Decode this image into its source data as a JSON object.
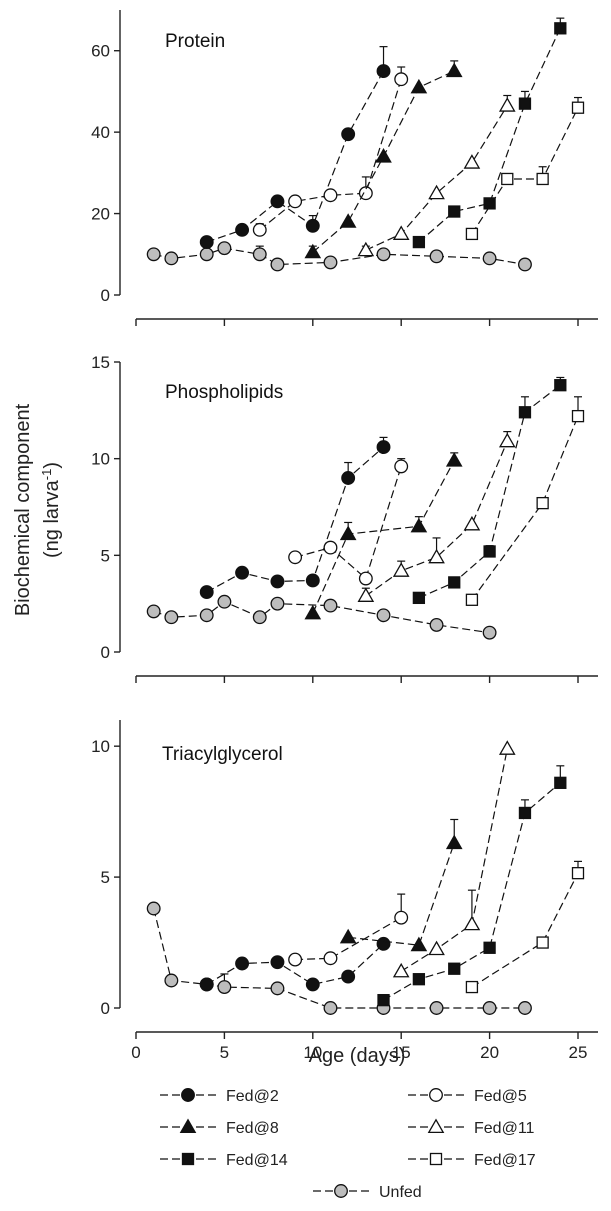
{
  "figure": {
    "ylabel_line1": "Biochemical component",
    "ylabel_line2_pre": "(ng larva",
    "ylabel_line2_sup": "-1",
    "ylabel_line2_post": ")",
    "xlabel": "Age (days)"
  },
  "series_styles": {
    "Fed@2": {
      "marker": "circle",
      "fill": "#111111"
    },
    "Fed@5": {
      "marker": "circle",
      "fill": "#ffffff"
    },
    "Fed@8": {
      "marker": "triangle",
      "fill": "#111111"
    },
    "Fed@11": {
      "marker": "triangle",
      "fill": "#ffffff"
    },
    "Fed@14": {
      "marker": "square",
      "fill": "#111111"
    },
    "Fed@17": {
      "marker": "square",
      "fill": "#ffffff"
    },
    "Unfed": {
      "marker": "circle",
      "fill": "#bdbdbd"
    }
  },
  "legend": [
    {
      "name": "Fed@2"
    },
    {
      "name": "Fed@5"
    },
    {
      "name": "Fed@8"
    },
    {
      "name": "Fed@11"
    },
    {
      "name": "Fed@14"
    },
    {
      "name": "Fed@17"
    },
    {
      "name": "Unfed"
    }
  ],
  "chart_data": [
    {
      "type": "line",
      "title": "Protein",
      "xlim": [
        0,
        27
      ],
      "ylim": [
        0,
        70
      ],
      "yticks": [
        0,
        20,
        40,
        60
      ],
      "xticks": [
        0,
        5,
        10,
        15,
        20,
        25
      ],
      "grid": false,
      "series": [
        {
          "name": "Fed@2",
          "x": [
            4,
            6,
            8,
            10,
            12,
            14
          ],
          "y": [
            13,
            16,
            23,
            17,
            39.5,
            55
          ],
          "err": [
            0,
            0,
            0,
            2.5,
            0,
            6
          ]
        },
        {
          "name": "Fed@5",
          "x": [
            7,
            9,
            11,
            13,
            15
          ],
          "y": [
            16,
            23,
            24.5,
            25,
            53
          ],
          "err": [
            1.5,
            0,
            0,
            4,
            3
          ]
        },
        {
          "name": "Fed@8",
          "x": [
            10,
            12,
            14,
            16,
            18
          ],
          "y": [
            10.5,
            18,
            34,
            51,
            55
          ],
          "err": [
            1.5,
            0,
            0,
            0,
            2.5
          ]
        },
        {
          "name": "Fed@11",
          "x": [
            13,
            15,
            17,
            19,
            21
          ],
          "y": [
            11,
            15,
            25,
            32.5,
            46.5
          ],
          "err": [
            1,
            0,
            0,
            0,
            2.5
          ]
        },
        {
          "name": "Fed@14",
          "x": [
            16,
            18,
            20,
            22,
            24
          ],
          "y": [
            13,
            20.5,
            22.5,
            47,
            65.5
          ],
          "err": [
            0,
            0,
            0,
            3,
            2.5
          ]
        },
        {
          "name": "Fed@17",
          "x": [
            19,
            21,
            23,
            25
          ],
          "y": [
            15,
            28.5,
            28.5,
            46
          ],
          "err": [
            0,
            0,
            3,
            2.5
          ]
        },
        {
          "name": "Unfed",
          "x": [
            1,
            2,
            4,
            5,
            7,
            8,
            11,
            14,
            17,
            20,
            22
          ],
          "y": [
            10,
            9,
            10,
            11.5,
            10,
            7.5,
            8,
            10,
            9.5,
            9,
            7.5
          ],
          "err": [
            0,
            0,
            0,
            0,
            2,
            0,
            0,
            0,
            0,
            0,
            0
          ]
        }
      ]
    },
    {
      "type": "line",
      "title": "Phospholipids",
      "xlim": [
        0,
        27
      ],
      "ylim": [
        0,
        15
      ],
      "yticks": [
        0,
        5,
        10,
        15
      ],
      "xticks": [
        0,
        5,
        10,
        15,
        20,
        25
      ],
      "grid": false,
      "series": [
        {
          "name": "Fed@2",
          "x": [
            4,
            6,
            8,
            10,
            12,
            14
          ],
          "y": [
            3.1,
            4.1,
            3.65,
            3.7,
            9,
            10.6
          ],
          "err": [
            0,
            0,
            0,
            0,
            0.8,
            0.5
          ]
        },
        {
          "name": "Fed@5",
          "x": [
            9,
            11,
            13,
            15
          ],
          "y": [
            4.9,
            5.4,
            3.8,
            9.6
          ],
          "err": [
            0,
            0,
            0,
            0.4
          ]
        },
        {
          "name": "Fed@8",
          "x": [
            10,
            12,
            16,
            18
          ],
          "y": [
            2,
            6.1,
            6.5,
            9.9
          ],
          "err": [
            0,
            0.6,
            0.5,
            0.4
          ]
        },
        {
          "name": "Fed@11",
          "x": [
            13,
            15,
            17,
            19,
            21
          ],
          "y": [
            2.9,
            4.2,
            4.9,
            6.6,
            10.9
          ],
          "err": [
            0.4,
            0.5,
            1,
            0,
            0.5
          ]
        },
        {
          "name": "Fed@14",
          "x": [
            16,
            18,
            20,
            22,
            24
          ],
          "y": [
            2.8,
            3.6,
            5.2,
            12.4,
            13.8
          ],
          "err": [
            0,
            0,
            0.3,
            0.8,
            0.4
          ]
        },
        {
          "name": "Fed@17",
          "x": [
            19,
            23,
            25
          ],
          "y": [
            2.7,
            7.7,
            12.2
          ],
          "err": [
            0,
            0,
            1
          ]
        },
        {
          "name": "Unfed",
          "x": [
            1,
            2,
            4,
            5,
            7,
            8,
            11,
            14,
            17,
            20
          ],
          "y": [
            2.1,
            1.8,
            1.9,
            2.6,
            1.8,
            2.5,
            2.4,
            1.9,
            1.4,
            1
          ],
          "err": [
            0,
            0,
            0,
            0,
            0,
            0,
            0,
            0,
            0,
            0
          ]
        }
      ]
    },
    {
      "type": "line",
      "title": "Triacylglycerol",
      "xlim": [
        0,
        27
      ],
      "ylim": [
        0,
        11
      ],
      "yticks": [
        0,
        5,
        10
      ],
      "xticks": [
        0,
        5,
        10,
        15,
        20,
        25
      ],
      "xticklabels": [
        "0",
        "5",
        "10",
        "15",
        "20",
        "25"
      ],
      "xlabel": "Age (days)",
      "grid": false,
      "series": [
        {
          "name": "Fed@2",
          "x": [
            4,
            6,
            8,
            10,
            12,
            14
          ],
          "y": [
            0.9,
            1.7,
            1.75,
            0.9,
            1.2,
            2.45
          ],
          "err": [
            0,
            0,
            0,
            0,
            0,
            0
          ]
        },
        {
          "name": "Fed@5",
          "x": [
            9,
            11,
            15
          ],
          "y": [
            1.85,
            1.9,
            3.45
          ],
          "err": [
            0,
            0,
            0.9
          ]
        },
        {
          "name": "Fed@8",
          "x": [
            12,
            16,
            18
          ],
          "y": [
            2.7,
            2.4,
            6.3
          ],
          "err": [
            0,
            0,
            0.9
          ]
        },
        {
          "name": "Fed@11",
          "x": [
            15,
            17,
            19,
            21
          ],
          "y": [
            1.4,
            2.25,
            3.2,
            9.9
          ],
          "err": [
            0,
            0,
            1.3,
            0
          ]
        },
        {
          "name": "Fed@14",
          "x": [
            14,
            16,
            18,
            20,
            22,
            24
          ],
          "y": [
            0.3,
            1.1,
            1.5,
            2.3,
            7.45,
            8.6
          ],
          "err": [
            0,
            0,
            0,
            0,
            0.5,
            0.65
          ]
        },
        {
          "name": "Fed@17",
          "x": [
            19,
            23,
            25
          ],
          "y": [
            0.8,
            2.5,
            5.15
          ],
          "err": [
            0,
            0,
            0.45
          ]
        },
        {
          "name": "Unfed",
          "x": [
            1,
            2,
            4,
            5,
            8,
            11,
            14,
            17,
            20,
            22
          ],
          "y": [
            3.8,
            1.05,
            0.9,
            0.8,
            0.75,
            0,
            0,
            0,
            0,
            0
          ],
          "err": [
            0,
            0,
            0,
            0.5,
            0,
            0,
            0,
            0,
            0,
            0
          ]
        }
      ]
    }
  ]
}
